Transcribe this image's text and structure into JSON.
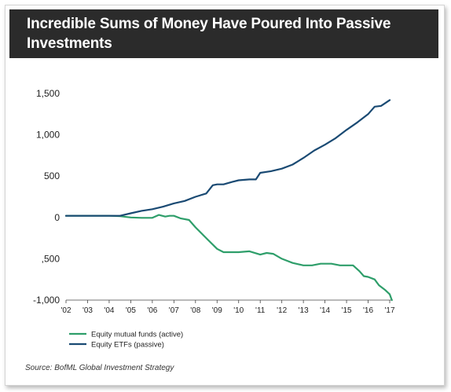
{
  "chart_data": {
    "type": "line",
    "title": "Incredible Sums of Money Have Poured Into Passive Investments",
    "source": "Source: BofML Global Investment Strategy",
    "x_tick_labels": [
      "'02",
      "'03",
      "'04",
      "'05",
      "'06",
      "'07",
      "'08",
      "'09",
      "'10",
      "'11",
      "'12",
      "'13",
      "'14",
      "'15",
      "'16",
      "'17"
    ],
    "x_range": [
      2002,
      2017.3
    ],
    "y_ticks": [
      1500,
      1000,
      500,
      0,
      -500,
      -1000
    ],
    "y_tick_labels": [
      "1,500",
      "1,000",
      "500",
      "0",
      ",500",
      "-1,000"
    ],
    "ylim": [
      -1000,
      1550
    ],
    "grid": false,
    "legend_position": "bottom-left",
    "series": [
      {
        "name": "Equity mutual funds (active)",
        "color": "#2e9e6a",
        "points": [
          [
            2002.0,
            20
          ],
          [
            2003.0,
            20
          ],
          [
            2004.0,
            20
          ],
          [
            2004.5,
            15
          ],
          [
            2005.0,
            0
          ],
          [
            2005.5,
            -5
          ],
          [
            2006.0,
            -5
          ],
          [
            2006.3,
            30
          ],
          [
            2006.6,
            10
          ],
          [
            2006.8,
            20
          ],
          [
            2007.0,
            20
          ],
          [
            2007.3,
            -10
          ],
          [
            2007.7,
            -30
          ],
          [
            2008.0,
            -120
          ],
          [
            2008.5,
            -250
          ],
          [
            2009.0,
            -380
          ],
          [
            2009.3,
            -420
          ],
          [
            2009.6,
            -420
          ],
          [
            2010.0,
            -420
          ],
          [
            2010.5,
            -410
          ],
          [
            2011.0,
            -450
          ],
          [
            2011.3,
            -430
          ],
          [
            2011.6,
            -440
          ],
          [
            2012.0,
            -500
          ],
          [
            2012.2,
            -520
          ],
          [
            2012.5,
            -550
          ],
          [
            2013.0,
            -580
          ],
          [
            2013.4,
            -580
          ],
          [
            2013.8,
            -560
          ],
          [
            2014.3,
            -560
          ],
          [
            2014.7,
            -580
          ],
          [
            2015.0,
            -580
          ],
          [
            2015.3,
            -580
          ],
          [
            2015.6,
            -650
          ],
          [
            2015.8,
            -710
          ],
          [
            2016.0,
            -720
          ],
          [
            2016.3,
            -750
          ],
          [
            2016.5,
            -820
          ],
          [
            2016.8,
            -880
          ],
          [
            2017.0,
            -930
          ],
          [
            2017.1,
            -1000
          ]
        ]
      },
      {
        "name": "Equity ETFs (passive)",
        "color": "#1a4a73",
        "points": [
          [
            2002.0,
            20
          ],
          [
            2003.0,
            20
          ],
          [
            2004.0,
            20
          ],
          [
            2004.5,
            20
          ],
          [
            2005.0,
            50
          ],
          [
            2005.5,
            80
          ],
          [
            2006.0,
            100
          ],
          [
            2006.5,
            130
          ],
          [
            2007.0,
            170
          ],
          [
            2007.5,
            200
          ],
          [
            2008.0,
            250
          ],
          [
            2008.5,
            290
          ],
          [
            2008.8,
            390
          ],
          [
            2009.0,
            400
          ],
          [
            2009.3,
            400
          ],
          [
            2009.7,
            430
          ],
          [
            2010.0,
            450
          ],
          [
            2010.5,
            460
          ],
          [
            2010.8,
            460
          ],
          [
            2011.0,
            540
          ],
          [
            2011.5,
            560
          ],
          [
            2012.0,
            590
          ],
          [
            2012.5,
            640
          ],
          [
            2013.0,
            720
          ],
          [
            2013.5,
            810
          ],
          [
            2014.0,
            880
          ],
          [
            2014.5,
            960
          ],
          [
            2015.0,
            1060
          ],
          [
            2015.5,
            1150
          ],
          [
            2016.0,
            1250
          ],
          [
            2016.3,
            1340
          ],
          [
            2016.6,
            1350
          ],
          [
            2017.0,
            1420
          ]
        ]
      }
    ]
  }
}
